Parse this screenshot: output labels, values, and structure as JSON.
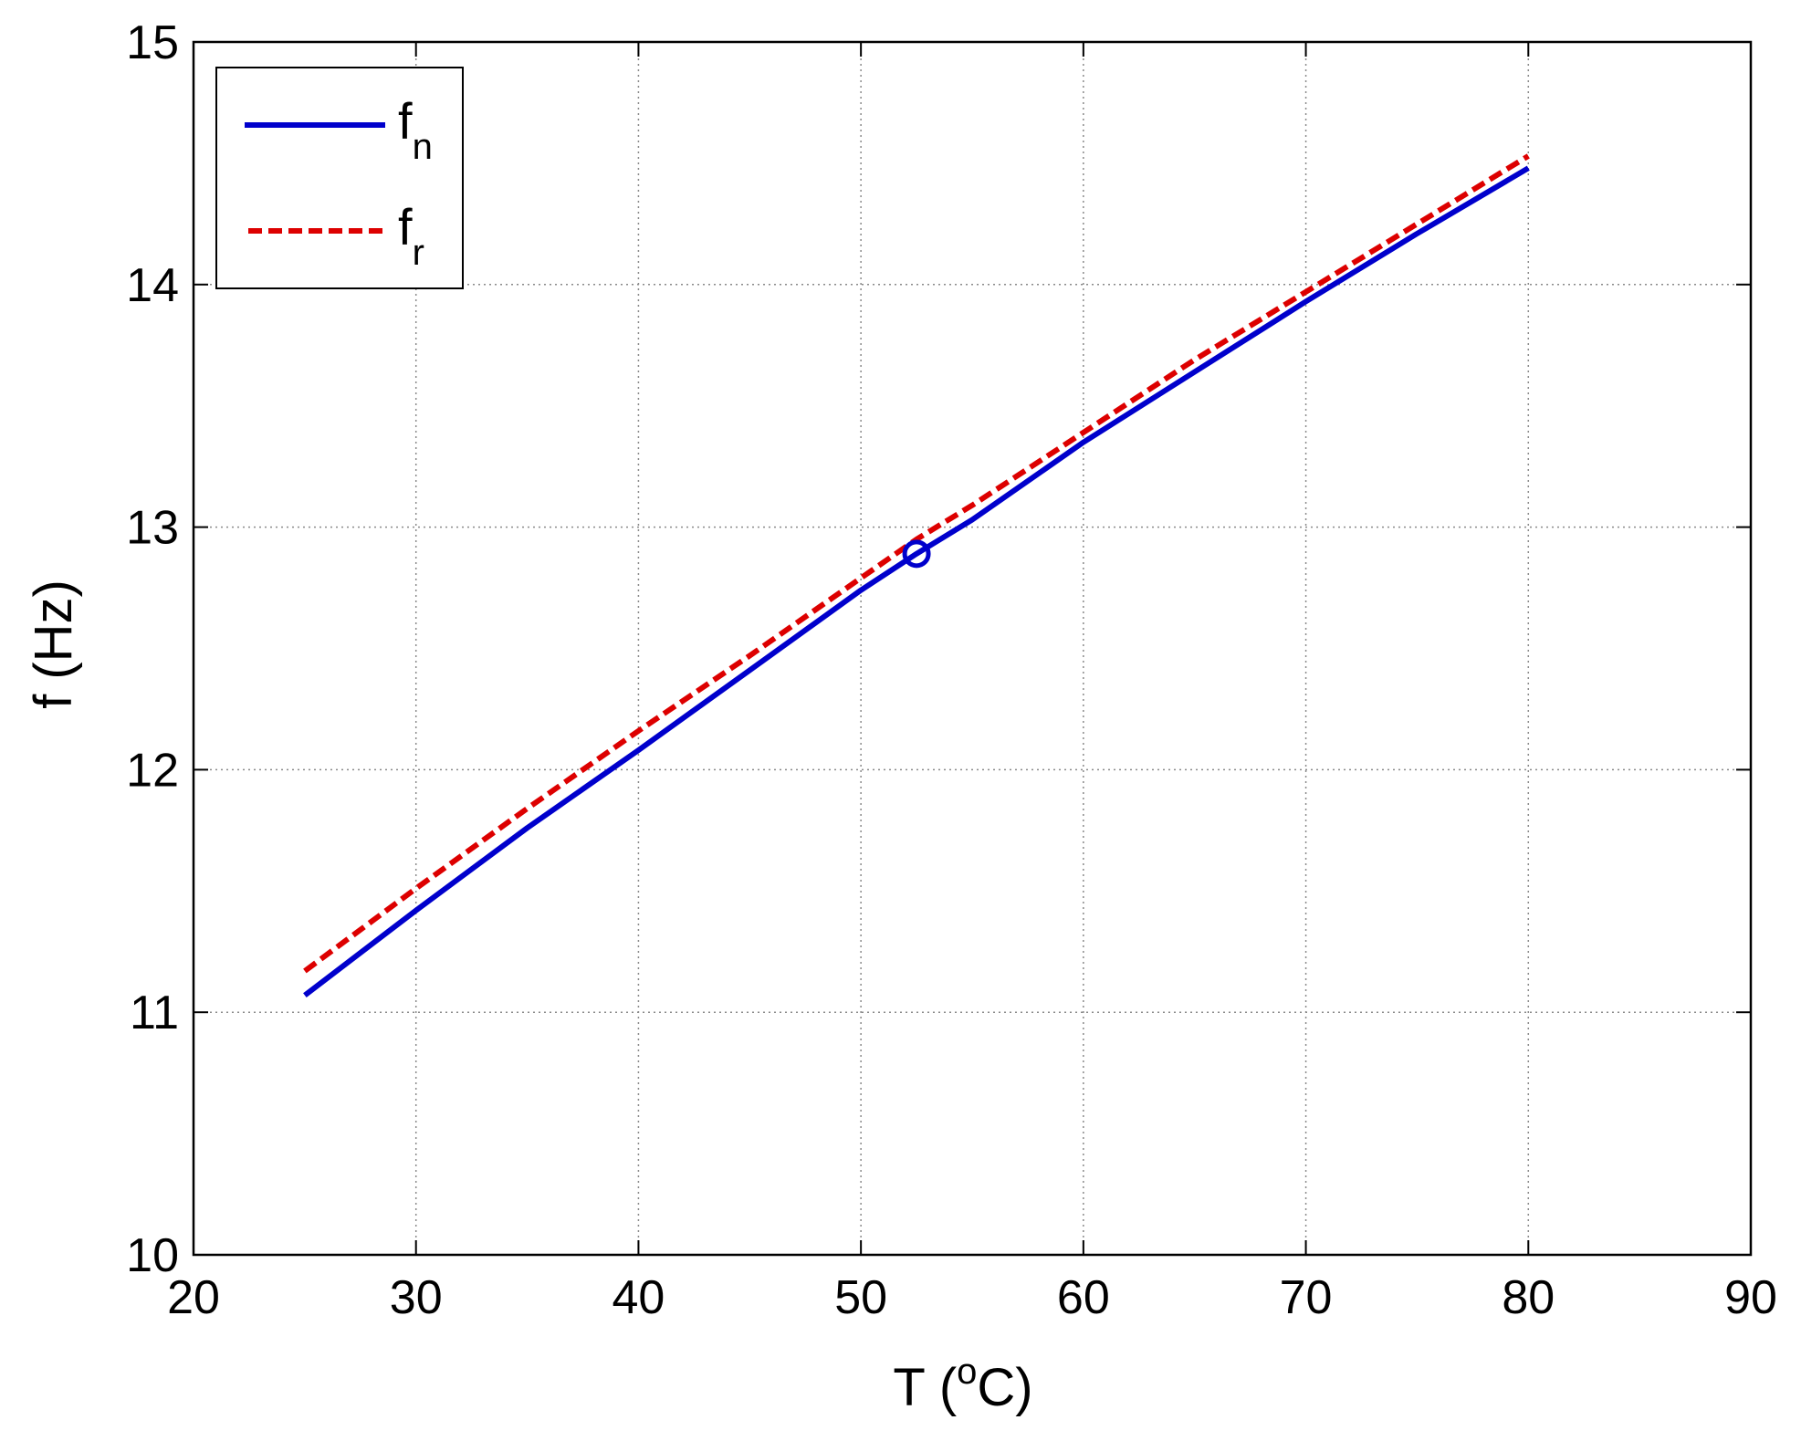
{
  "chart_data": {
    "type": "line",
    "xlabel": "T (",
    "xlabel_superscript": "o",
    "xlabel_end": "C)",
    "ylabel": "f (Hz)",
    "xlim": [
      20,
      90
    ],
    "ylim": [
      10,
      15
    ],
    "xticks": [
      "20",
      "30",
      "40",
      "50",
      "60",
      "70",
      "80",
      "90"
    ],
    "yticks": [
      "10",
      "11",
      "12",
      "13",
      "14",
      "15"
    ],
    "grid": true,
    "legend_position": "top-left",
    "series": [
      {
        "name": "f",
        "name_subscript": "n",
        "style": "solid",
        "color": "#0000cc",
        "x": [
          25,
          30,
          35,
          40,
          45,
          50,
          52.5,
          55,
          60,
          65,
          70,
          75,
          80
        ],
        "y": [
          11.07,
          11.42,
          11.76,
          12.08,
          12.41,
          12.74,
          12.89,
          13.03,
          13.35,
          13.64,
          13.93,
          14.21,
          14.48
        ]
      },
      {
        "name": "f",
        "name_subscript": "r",
        "style": "dashed",
        "color": "#dd0000",
        "x": [
          25,
          30,
          35,
          40,
          45,
          50,
          52.5,
          55,
          60,
          65,
          70,
          75,
          80
        ],
        "y": [
          11.17,
          11.51,
          11.84,
          12.16,
          12.47,
          12.79,
          12.95,
          13.09,
          13.39,
          13.69,
          13.97,
          14.25,
          14.53
        ]
      }
    ],
    "marker": {
      "x": 52.5,
      "y": 12.89,
      "shape": "circle",
      "color": "#0000cc"
    }
  }
}
